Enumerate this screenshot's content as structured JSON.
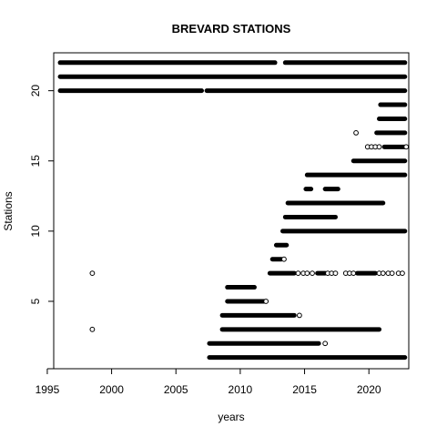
{
  "chart_data": {
    "type": "scatter",
    "title": "BREVARD STATIONS",
    "xlabel": "years",
    "ylabel": "Stations",
    "xlim": [
      1995.5,
      2023.1
    ],
    "ylim": [
      0.2,
      22.7
    ],
    "xticks": [
      1995,
      2000,
      2005,
      2010,
      2015,
      2020
    ],
    "yticks": [
      5,
      10,
      15,
      20
    ],
    "marker": "open-circle",
    "grid": false,
    "series": [
      {
        "station": 22,
        "segments": [
          [
            1996.0,
            2012.7
          ],
          [
            2013.5,
            2022.8
          ]
        ]
      },
      {
        "station": 21,
        "segments": [
          [
            1996.0,
            2022.8
          ]
        ]
      },
      {
        "station": 20,
        "segments": [
          [
            1996.0,
            2007.0
          ],
          [
            2007.4,
            2022.8
          ]
        ]
      },
      {
        "station": 19,
        "segments": [
          [
            2020.9,
            2022.8
          ]
        ]
      },
      {
        "station": 18,
        "segments": [
          [
            2020.8,
            2022.8
          ]
        ]
      },
      {
        "station": 17,
        "segments": [
          [
            2020.6,
            2022.8
          ]
        ],
        "points": [
          2019.0
        ]
      },
      {
        "station": 16,
        "segments": [
          [
            2021.2,
            2022.8
          ]
        ],
        "points": [
          2019.9,
          2020.2,
          2020.5,
          2020.8,
          2022.9
        ]
      },
      {
        "station": 15,
        "segments": [
          [
            2018.8,
            2022.8
          ]
        ]
      },
      {
        "station": 14,
        "segments": [
          [
            2015.2,
            2022.8
          ]
        ]
      },
      {
        "station": 13,
        "segments": [
          [
            2015.1,
            2015.5
          ],
          [
            2016.6,
            2017.6
          ]
        ]
      },
      {
        "station": 12,
        "segments": [
          [
            2013.7,
            2021.1
          ]
        ]
      },
      {
        "station": 11,
        "segments": [
          [
            2013.5,
            2017.4
          ]
        ]
      },
      {
        "station": 10,
        "segments": [
          [
            2013.3,
            2022.8
          ]
        ]
      },
      {
        "station": 9,
        "segments": [
          [
            2012.8,
            2013.6
          ]
        ]
      },
      {
        "station": 8,
        "segments": [
          [
            2012.5,
            2013.2
          ]
        ],
        "points": [
          2013.4
        ]
      },
      {
        "station": 7,
        "segments": [
          [
            2012.3,
            2014.2
          ],
          [
            2016.0,
            2016.6
          ],
          [
            2019.1,
            2020.5
          ]
        ],
        "points": [
          1998.5,
          2014.5,
          2014.9,
          2015.2,
          2015.6,
          2016.8,
          2017.1,
          2017.4,
          2018.2,
          2018.5,
          2018.8,
          2020.8,
          2021.1,
          2021.5,
          2021.8,
          2022.3,
          2022.6
        ]
      },
      {
        "station": 6,
        "segments": [
          [
            2009.0,
            2011.1
          ]
        ]
      },
      {
        "station": 5,
        "segments": [
          [
            2009.0,
            2011.9
          ]
        ],
        "points": [
          2012.0
        ]
      },
      {
        "station": 4,
        "segments": [
          [
            2008.6,
            2014.2
          ]
        ],
        "points": [
          2014.6
        ]
      },
      {
        "station": 3,
        "segments": [
          [
            2008.6,
            2020.8
          ]
        ],
        "points": [
          1998.5
        ]
      },
      {
        "station": 2,
        "segments": [
          [
            2007.6,
            2016.1
          ]
        ],
        "points": [
          2016.6
        ]
      },
      {
        "station": 1,
        "segments": [
          [
            2007.6,
            2022.8
          ]
        ]
      }
    ]
  }
}
